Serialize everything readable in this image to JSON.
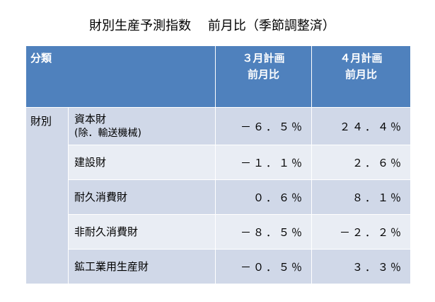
{
  "title": "財別生産予測指数　 前月比（季節調整済）",
  "header": {
    "category": "分類",
    "march": [
      "３月計画",
      "前月比"
    ],
    "april": [
      "４月計画",
      "前月比"
    ]
  },
  "group_label": "財別",
  "rows": [
    {
      "item": "資本財",
      "item_sub": "(除．輸送機械)",
      "march": "－６．５％",
      "april": "２４．４％"
    },
    {
      "item": "建設財",
      "item_sub": "",
      "march": "－１．１％",
      "april": "２．６％"
    },
    {
      "item": "耐久消費財",
      "item_sub": "",
      "march": "０．６％",
      "april": "８．１％"
    },
    {
      "item": "非耐久消費財",
      "item_sub": "",
      "march": "－８．５％",
      "april": "－２．２％"
    },
    {
      "item": "鉱工業用生産財",
      "item_sub": "",
      "march": "－０．５％",
      "april": "３．３％"
    }
  ]
}
